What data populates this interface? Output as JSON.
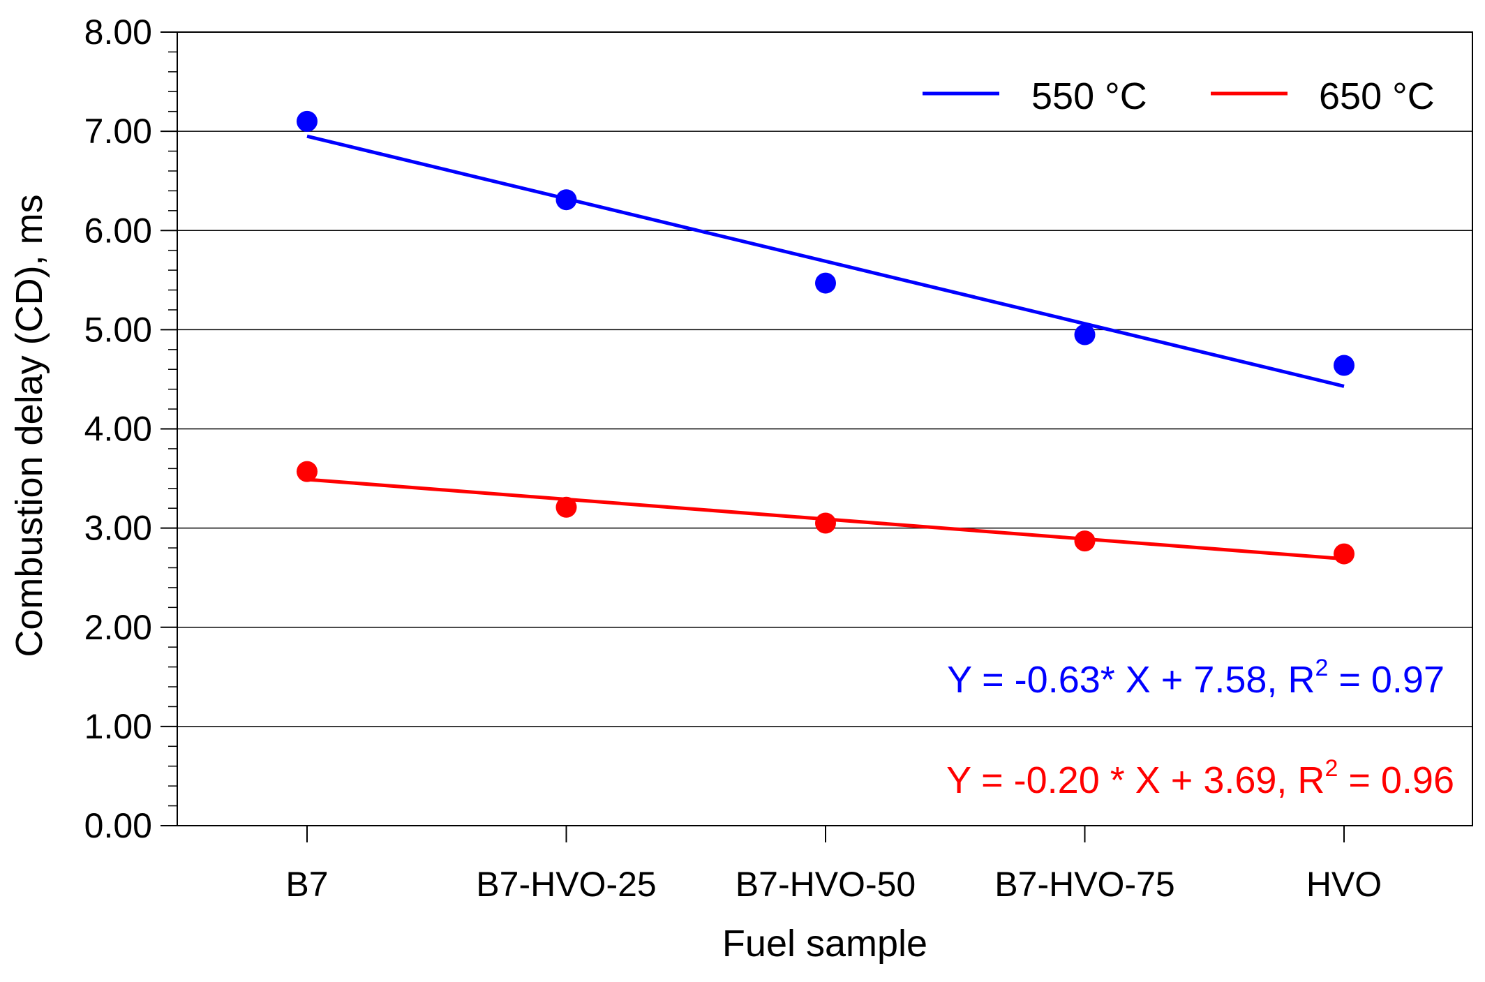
{
  "chart_data": {
    "type": "scatter",
    "xlabel": "Fuel sample",
    "ylabel": "Combustion delay (CD), ms",
    "categories": [
      "B7",
      "B7-HVO-25",
      "B7-HVO-50",
      "B7-HVO-75",
      "HVO"
    ],
    "ylim": [
      0,
      8
    ],
    "yticks": [
      "0.00",
      "1.00",
      "2.00",
      "3.00",
      "4.00",
      "5.00",
      "6.00",
      "7.00",
      "8.00"
    ],
    "ytick_values": [
      0,
      1,
      2,
      3,
      4,
      5,
      6,
      7,
      8
    ],
    "grid": true,
    "legend_position": "top-right",
    "series": [
      {
        "name": "550 °C",
        "color": "#0000ff",
        "values": [
          7.1,
          6.31,
          5.47,
          4.95,
          4.64
        ],
        "fit": {
          "slope": -0.63,
          "intercept": 7.58,
          "equation_main": "Y = -0.63* X + 7.58, R",
          "r2_sup": "2",
          "equation_tail": " = 0.97"
        }
      },
      {
        "name": "650 °C",
        "color": "#ff0000",
        "values": [
          3.57,
          3.21,
          3.05,
          2.87,
          2.74
        ],
        "fit": {
          "slope": -0.2,
          "intercept": 3.69,
          "equation_main": "Y = -0.20 * X + 3.69, R",
          "r2_sup": "2",
          "equation_tail": " = 0.96"
        }
      }
    ]
  }
}
